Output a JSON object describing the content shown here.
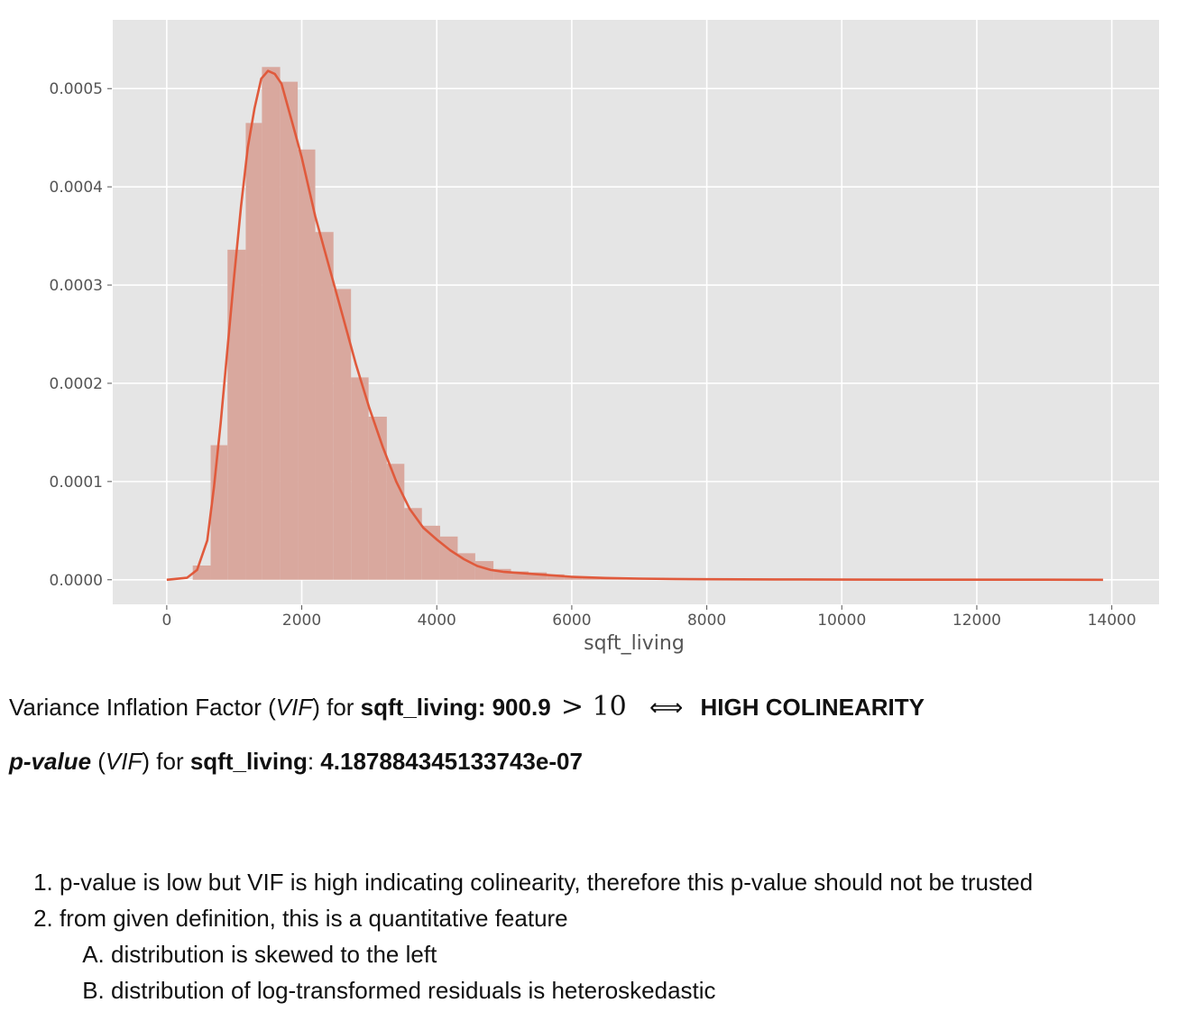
{
  "chart_data": {
    "type": "bar",
    "subtype": "histogram_with_kde",
    "xlabel": "sqft_living",
    "ylabel": "",
    "xlim": [
      -800,
      14700
    ],
    "ylim": [
      -2.5e-05,
      0.00057
    ],
    "xticks": [
      0,
      2000,
      4000,
      6000,
      8000,
      10000,
      12000,
      14000
    ],
    "xtick_labels": [
      "0",
      "2000",
      "4000",
      "6000",
      "8000",
      "10000",
      "12000",
      "14000"
    ],
    "yticks": [
      0.0,
      0.0001,
      0.0002,
      0.0003,
      0.0004,
      0.0005
    ],
    "ytick_labels": [
      "0.0000",
      "0.0001",
      "0.0002",
      "0.0003",
      "0.0004",
      "0.0005"
    ],
    "grid": true,
    "bar_color": "#d9a89e",
    "line_color": "#e05a3c",
    "bins": [
      {
        "x0": 385,
        "x1": 650,
        "density": 1.45e-05
      },
      {
        "x0": 650,
        "x1": 900,
        "density": 0.000137
      },
      {
        "x0": 900,
        "x1": 1170,
        "density": 0.000336
      },
      {
        "x0": 1170,
        "x1": 1410,
        "density": 0.000465
      },
      {
        "x0": 1410,
        "x1": 1680,
        "density": 0.000522
      },
      {
        "x0": 1680,
        "x1": 1940,
        "density": 0.000507
      },
      {
        "x0": 1940,
        "x1": 2200,
        "density": 0.000438
      },
      {
        "x0": 2200,
        "x1": 2470,
        "density": 0.000354
      },
      {
        "x0": 2470,
        "x1": 2730,
        "density": 0.000296
      },
      {
        "x0": 2730,
        "x1": 2990,
        "density": 0.000206
      },
      {
        "x0": 2990,
        "x1": 3260,
        "density": 0.000166
      },
      {
        "x0": 3260,
        "x1": 3520,
        "density": 0.000118
      },
      {
        "x0": 3520,
        "x1": 3780,
        "density": 7.3e-05
      },
      {
        "x0": 3780,
        "x1": 4050,
        "density": 5.5e-05
      },
      {
        "x0": 4050,
        "x1": 4310,
        "density": 4.4e-05
      },
      {
        "x0": 4310,
        "x1": 4570,
        "density": 2.7e-05
      },
      {
        "x0": 4570,
        "x1": 4840,
        "density": 1.9e-05
      },
      {
        "x0": 4840,
        "x1": 5100,
        "density": 1.1e-05
      },
      {
        "x0": 5100,
        "x1": 5360,
        "density": 8.5e-06
      },
      {
        "x0": 5360,
        "x1": 5630,
        "density": 7.5e-06
      },
      {
        "x0": 5630,
        "x1": 5890,
        "density": 5.5e-06
      },
      {
        "x0": 5890,
        "x1": 6150,
        "density": 3.5e-06
      },
      {
        "x0": 6150,
        "x1": 6420,
        "density": 2.5e-06
      },
      {
        "x0": 6420,
        "x1": 6680,
        "density": 2e-06
      },
      {
        "x0": 6680,
        "x1": 6940,
        "density": 1.5e-06
      },
      {
        "x0": 6940,
        "x1": 7200,
        "density": 1.2e-06
      },
      {
        "x0": 7200,
        "x1": 7470,
        "density": 1e-06
      },
      {
        "x0": 7470,
        "x1": 7730,
        "density": 8e-07
      },
      {
        "x0": 7730,
        "x1": 8000,
        "density": 6e-07
      },
      {
        "x0": 8000,
        "x1": 8260,
        "density": 4e-07
      }
    ],
    "kde": {
      "x": [
        0,
        300,
        450,
        600,
        700,
        800,
        900,
        1000,
        1100,
        1200,
        1300,
        1400,
        1500,
        1600,
        1700,
        1800,
        1900,
        2000,
        2200,
        2400,
        2600,
        2800,
        3000,
        3200,
        3400,
        3600,
        3800,
        4000,
        4200,
        4400,
        4600,
        4800,
        5000,
        5300,
        5600,
        6000,
        6500,
        7000,
        7500,
        8000,
        9000,
        10000,
        11000,
        12000,
        13000,
        13870
      ],
      "y": [
        0.0,
        2e-06,
        1e-05,
        4e-05,
        9.5e-05,
        0.00016,
        0.000235,
        0.00031,
        0.00038,
        0.00044,
        0.00048,
        0.00051,
        0.000518,
        0.000515,
        0.000505,
        0.00048,
        0.000455,
        0.00043,
        0.00037,
        0.00032,
        0.00027,
        0.00022,
        0.000175,
        0.000135,
        0.0001,
        7.2e-05,
        5.3e-05,
        4.1e-05,
        3e-05,
        2.1e-05,
        1.4e-05,
        1e-05,
        8e-06,
        6.5e-06,
        5e-06,
        3e-06,
        1.8e-06,
        1.2e-06,
        8e-07,
        5e-07,
        3e-07,
        2e-07,
        1e-07,
        1e-07,
        1e-07,
        0.0
      ]
    }
  },
  "vif_line": {
    "prefix": "Variance Inflation Factor (",
    "vif_abbrev": "VIF",
    "for_text": ") for ",
    "feature": "sqft_living",
    "colon": ":",
    "value": "900.9",
    "math": "> 10",
    "arrow": "⟺",
    "verdict": "HIGH COLINEARITY"
  },
  "pvalue_line": {
    "label": "p-value",
    "open_paren": " (",
    "vif_abbrev": "VIF",
    "for_text": ") for ",
    "feature": "sqft_living",
    "colon": ": ",
    "value": "4.187884345133743e-07"
  },
  "findings": [
    "p-value is low but VIF is high indicating colinearity, therefore this p-value should not be trusted",
    "from given definition, this is a quantitative feature"
  ],
  "sub_findings": [
    "distribution is skewed to the left",
    "distribution of log-transformed residuals is heteroskedastic"
  ]
}
